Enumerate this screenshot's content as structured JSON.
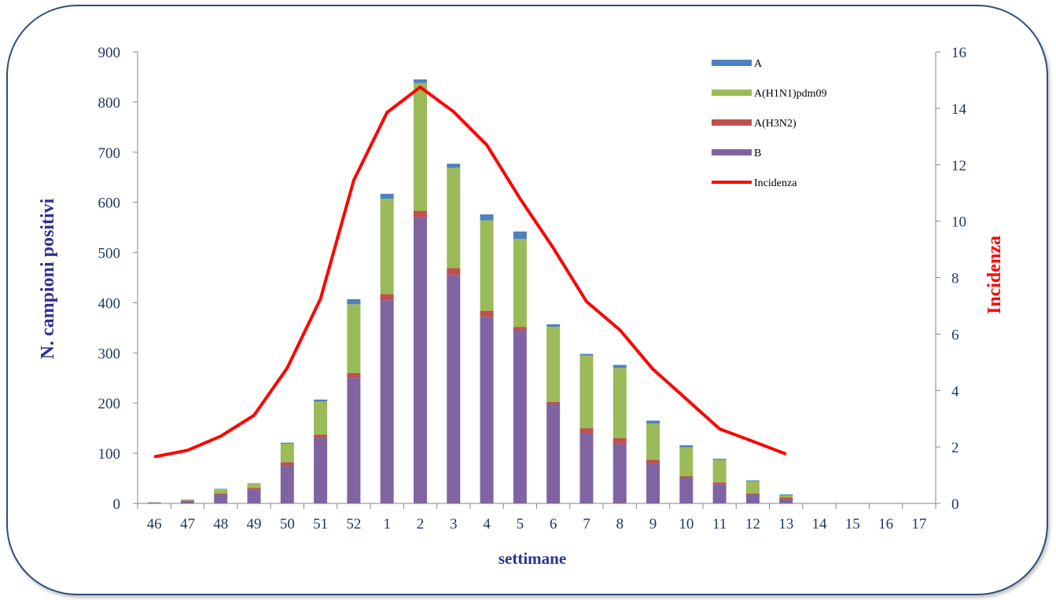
{
  "chart_data": {
    "type": "bar",
    "subtype": "stacked-bar-with-line",
    "categories": [
      "46",
      "47",
      "48",
      "49",
      "50",
      "51",
      "52",
      "1",
      "2",
      "3",
      "4",
      "5",
      "6",
      "7",
      "8",
      "9",
      "10",
      "11",
      "12",
      "13",
      "14",
      "15",
      "16",
      "17"
    ],
    "xlabel": "settimane",
    "ylabel": "N. campioni positivi",
    "y2label": "Incidenza",
    "ylim": [
      0,
      900
    ],
    "y2lim": [
      0,
      16
    ],
    "yticks": [
      0,
      100,
      200,
      300,
      400,
      500,
      600,
      700,
      800,
      900
    ],
    "y2ticks": [
      0,
      2,
      4,
      6,
      8,
      10,
      12,
      14,
      16
    ],
    "grid": false,
    "legend_position": "top-right",
    "series": [
      {
        "name": "B",
        "color": "#8064a2",
        "axis": "left",
        "values": [
          2,
          5,
          18,
          28,
          75,
          130,
          250,
          405,
          570,
          455,
          372,
          345,
          198,
          140,
          118,
          80,
          50,
          38,
          18,
          8,
          0,
          0,
          0,
          0
        ]
      },
      {
        "name": "A(H3N2)",
        "color": "#c0504d",
        "axis": "left",
        "values": [
          0,
          1,
          2,
          3,
          7,
          7,
          10,
          12,
          13,
          14,
          12,
          7,
          4,
          10,
          12,
          7,
          4,
          4,
          2,
          4,
          0,
          0,
          0,
          0
        ]
      },
      {
        "name": "A(H1N1)pdm09",
        "color": "#9bbb59",
        "axis": "left",
        "values": [
          0,
          2,
          8,
          8,
          37,
          66,
          137,
          190,
          255,
          200,
          180,
          175,
          150,
          145,
          140,
          72,
          58,
          45,
          24,
          4,
          0,
          0,
          0,
          0
        ]
      },
      {
        "name": "A",
        "color": "#4f81bd",
        "axis": "left",
        "values": [
          0,
          0,
          1,
          1,
          2,
          4,
          10,
          10,
          7,
          8,
          12,
          15,
          5,
          3,
          6,
          6,
          4,
          2,
          2,
          2,
          0,
          0,
          0,
          0
        ]
      },
      {
        "name": "Incidenza",
        "color": "#ff0000",
        "axis": "right",
        "type": "line",
        "values": [
          1.65,
          1.88,
          2.38,
          3.12,
          4.8,
          7.25,
          11.45,
          13.85,
          14.75,
          13.88,
          12.7,
          10.8,
          9.05,
          7.15,
          6.15,
          4.75,
          3.7,
          2.64,
          2.2,
          1.75,
          null,
          null,
          null,
          null
        ]
      }
    ],
    "legend_order": [
      "A",
      "A(H1N1)pdm09",
      "A(H3N2)",
      "B",
      "Incidenza"
    ]
  }
}
